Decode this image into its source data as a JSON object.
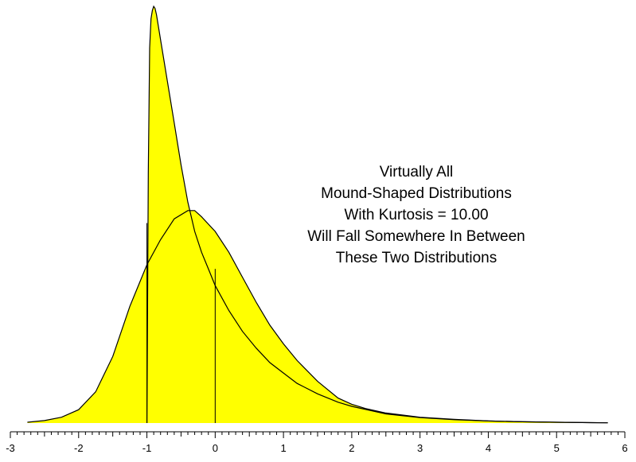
{
  "chart_data": {
    "type": "area",
    "title": "",
    "xlabel": "",
    "ylabel": "",
    "xlim": [
      -3,
      6
    ],
    "ylim": [
      0,
      1
    ],
    "grid": false,
    "fill_color": "#ffff00",
    "line_color": "#000000",
    "major_ticks": [
      "-3",
      "-2",
      "-1",
      "0",
      "1",
      "2",
      "3",
      "4",
      "5",
      "6"
    ],
    "annotation": [
      "Virtually  All",
      "Mound-Shaped Distributions",
      "With Kurtosis = 10.00",
      "Will Fall Somewhere In Between",
      "These Two Distributions"
    ],
    "reference_lines": [
      {
        "x": -1.0,
        "y_top": 0.48
      },
      {
        "x": 0.0,
        "y_top": 0.37
      }
    ],
    "series": [
      {
        "x": [
          -1.0,
          -0.98,
          -0.96,
          -0.94,
          -0.92,
          -0.9,
          -0.88,
          -0.86,
          -0.8,
          -0.7,
          -0.6,
          -0.5,
          -0.4,
          -0.3,
          -0.2,
          -0.1,
          0.0,
          0.2,
          0.4,
          0.6,
          0.8,
          1.0,
          1.2,
          1.5,
          1.8,
          2.0,
          2.5,
          3.0,
          3.5,
          4.0,
          4.5,
          5.0,
          5.5,
          5.75
        ],
        "y": [
          0.0,
          0.6,
          0.9,
          0.97,
          0.99,
          1.0,
          0.995,
          0.98,
          0.92,
          0.82,
          0.72,
          0.62,
          0.53,
          0.46,
          0.41,
          0.37,
          0.33,
          0.27,
          0.22,
          0.18,
          0.145,
          0.12,
          0.095,
          0.07,
          0.05,
          0.04,
          0.022,
          0.013,
          0.008,
          0.005,
          0.003,
          0.002,
          0.001,
          0.0005
        ]
      },
      {
        "x": [
          -2.75,
          -2.5,
          -2.25,
          -2.0,
          -1.75,
          -1.5,
          -1.25,
          -1.0,
          -0.8,
          -0.6,
          -0.4,
          -0.3,
          -0.2,
          0.0,
          0.2,
          0.4,
          0.6,
          0.8,
          1.0,
          1.2,
          1.5,
          1.8,
          2.0,
          2.2,
          2.5,
          3.0,
          3.5,
          4.0,
          4.5,
          5.0,
          5.5,
          5.75
        ],
        "y": [
          0.002,
          0.006,
          0.014,
          0.032,
          0.075,
          0.16,
          0.28,
          0.38,
          0.44,
          0.49,
          0.51,
          0.51,
          0.495,
          0.46,
          0.41,
          0.35,
          0.29,
          0.235,
          0.19,
          0.15,
          0.1,
          0.06,
          0.045,
          0.035,
          0.024,
          0.014,
          0.009,
          0.005,
          0.003,
          0.002,
          0.001,
          0.0005
        ]
      }
    ]
  }
}
